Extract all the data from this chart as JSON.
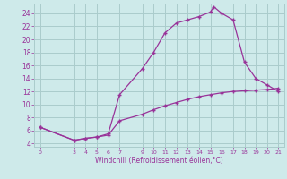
{
  "xlabel": "Windchill (Refroidissement éolien,°C)",
  "bg_color": "#ceeaea",
  "grid_color": "#aacccc",
  "line_color": "#993399",
  "x_ticks": [
    0,
    3,
    4,
    5,
    6,
    7,
    9,
    10,
    11,
    12,
    13,
    14,
    15,
    16,
    17,
    18,
    19,
    20,
    21
  ],
  "y_ticks": [
    4,
    6,
    8,
    10,
    12,
    14,
    16,
    18,
    20,
    22,
    24
  ],
  "xlim": [
    -0.5,
    21.5
  ],
  "ylim": [
    3.5,
    25.5
  ],
  "curve1_x": [
    0,
    3,
    4,
    5,
    6,
    7,
    9,
    10,
    11,
    12,
    13,
    14,
    15,
    15.3,
    16,
    17,
    18,
    19,
    20,
    21
  ],
  "curve1_y": [
    6.5,
    4.5,
    4.8,
    5.0,
    5.5,
    11.5,
    15.5,
    18.0,
    21.0,
    22.5,
    23.0,
    23.5,
    24.2,
    25.0,
    24.0,
    23.0,
    16.5,
    14.0,
    13.0,
    12.0
  ],
  "curve2_x": [
    0,
    3,
    4,
    5,
    6,
    7,
    9,
    10,
    11,
    12,
    13,
    14,
    15,
    16,
    17,
    18,
    19,
    20,
    21
  ],
  "curve2_y": [
    6.5,
    4.5,
    4.8,
    5.0,
    5.3,
    7.5,
    8.5,
    9.2,
    9.8,
    10.3,
    10.8,
    11.2,
    11.5,
    11.8,
    12.0,
    12.1,
    12.2,
    12.3,
    12.5
  ]
}
